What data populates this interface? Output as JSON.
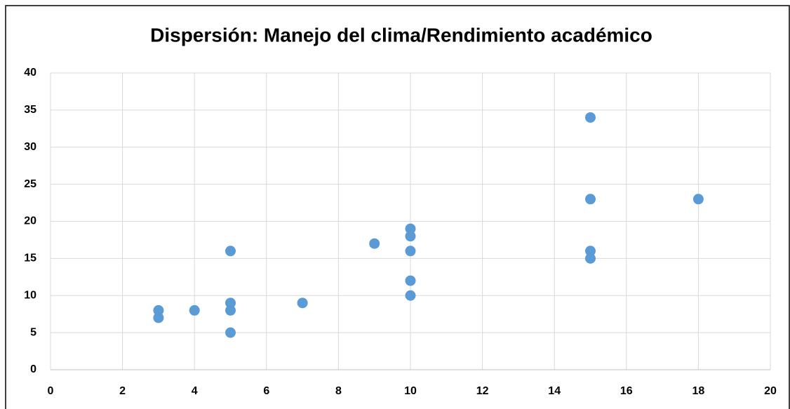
{
  "chart_data": {
    "type": "scatter",
    "title": "Dispersión: Manejo del clima/Rendimiento académico",
    "series": [
      {
        "color": "#5b9bd5",
        "x": [
          3,
          3,
          4,
          5,
          5,
          5,
          5,
          7,
          9,
          10,
          10,
          10,
          10,
          10,
          15,
          15,
          15,
          15,
          18
        ],
        "values": [
          8,
          7,
          8,
          16,
          9,
          8,
          5,
          9,
          17,
          19,
          18,
          16,
          12,
          10,
          34,
          23,
          16,
          15,
          23
        ]
      }
    ],
    "xlim": [
      0,
      20
    ],
    "xticks": [
      0,
      2,
      4,
      6,
      8,
      10,
      12,
      14,
      16,
      18,
      20
    ],
    "ylim": [
      0,
      40
    ],
    "yticks": [
      0,
      5,
      10,
      15,
      20,
      25,
      30,
      35,
      40
    ],
    "grid": true
  }
}
